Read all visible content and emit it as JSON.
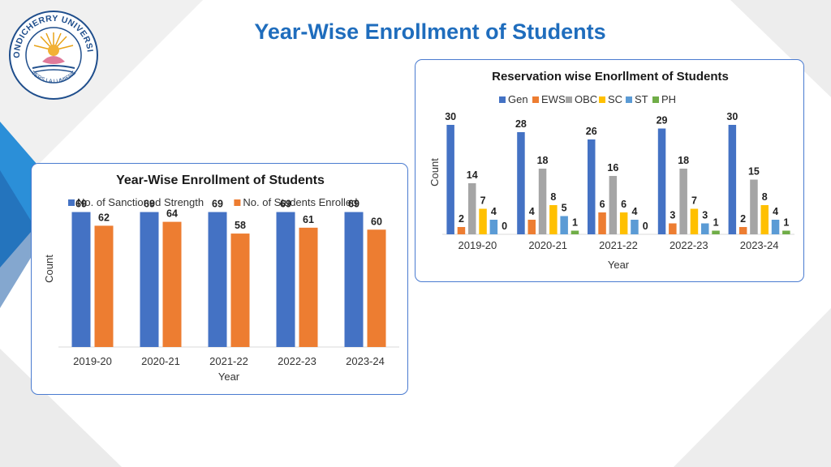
{
  "page": {
    "title": "Year-Wise Enrollment of Students",
    "logo": {
      "icon": "university-seal-icon",
      "ring_text": "PONDICHERRY UNIVERSITY",
      "motto": "VERS LA LUMIERE"
    }
  },
  "colors": {
    "title": "#1F6DBD",
    "card_border": "#4A7BD0",
    "blue": "#4472C4",
    "orange": "#ED7D31",
    "gray": "#A5A5A5",
    "yellow": "#FFC000",
    "lightblue": "#5B9BD5",
    "green": "#70AD47"
  },
  "chart_data": [
    {
      "type": "bar",
      "title": "Year-Wise Enrollment of Students",
      "xlabel": "Year",
      "ylabel": "Count",
      "categories": [
        "2019-20",
        "2020-21",
        "2021-22",
        "2022-23",
        "2023-24"
      ],
      "ylim": [
        0,
        80
      ],
      "legend_position": "top",
      "grid": false,
      "series": [
        {
          "name": "No. of Sanctioned Strength",
          "color": "#4472C4",
          "values": [
            69,
            69,
            69,
            69,
            69
          ]
        },
        {
          "name": "No. of Students Enrolled",
          "color": "#ED7D31",
          "values": [
            62,
            64,
            58,
            61,
            60
          ]
        }
      ]
    },
    {
      "type": "bar",
      "title": "Reservation wise Enorllment of Students",
      "xlabel": "Year",
      "ylabel": "Count",
      "categories": [
        "2019-20",
        "2020-21",
        "2021-22",
        "2022-23",
        "2023-24"
      ],
      "ylim": [
        0,
        34
      ],
      "legend_position": "top",
      "grid": false,
      "series": [
        {
          "name": "Gen",
          "color": "#4472C4",
          "values": [
            30,
            28,
            26,
            29,
            30
          ]
        },
        {
          "name": "EWS",
          "color": "#ED7D31",
          "values": [
            2,
            4,
            6,
            3,
            2
          ]
        },
        {
          "name": "OBC",
          "color": "#A5A5A5",
          "values": [
            14,
            18,
            16,
            18,
            15
          ]
        },
        {
          "name": "SC",
          "color": "#FFC000",
          "values": [
            7,
            8,
            6,
            7,
            8
          ]
        },
        {
          "name": "ST",
          "color": "#5B9BD5",
          "values": [
            4,
            5,
            4,
            3,
            4
          ]
        },
        {
          "name": "PH",
          "color": "#70AD47",
          "values": [
            0,
            1,
            0,
            1,
            1
          ]
        }
      ]
    }
  ]
}
